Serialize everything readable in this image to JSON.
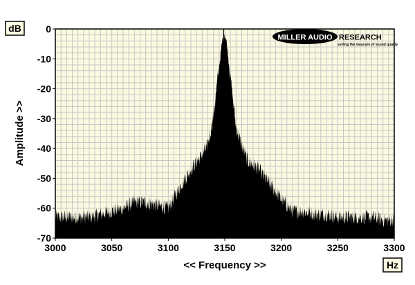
{
  "chart_data": {
    "type": "area",
    "title": "",
    "xlabel": "<< Frequency >>",
    "ylabel": "Amplitude >>",
    "x_unit": "Hz",
    "y_unit": "dB",
    "xlim": [
      3000,
      3300
    ],
    "ylim": [
      -70,
      0
    ],
    "x_ticks": [
      3000,
      3050,
      3100,
      3150,
      3200,
      3250,
      3300
    ],
    "x_tick_labels": [
      "3000",
      "3050",
      "3100",
      "3150",
      "3200",
      "3250",
      "3300"
    ],
    "y_ticks": [
      0,
      -10,
      -20,
      -30,
      -40,
      -50,
      -60,
      -70
    ],
    "y_tick_labels": [
      "0",
      "-10",
      "-20",
      "-30",
      "-40",
      "-50",
      "-60",
      "-70"
    ],
    "grid": true,
    "legend": "none",
    "colors": {
      "plot_bg": "#fbf9e0",
      "grid": "#c6c6c6",
      "fill": "#000000"
    },
    "series": [
      {
        "x": [
          3000,
          3010,
          3020,
          3030,
          3040,
          3050,
          3060,
          3070,
          3080,
          3090,
          3100,
          3110,
          3120,
          3130,
          3135,
          3140,
          3143,
          3146,
          3148,
          3150,
          3152,
          3155,
          3160,
          3165,
          3170,
          3180,
          3190,
          3200,
          3210,
          3220,
          3230,
          3240,
          3250,
          3260,
          3270,
          3280,
          3290,
          3300
        ],
        "values": [
          -64,
          -64,
          -64,
          -64,
          -63,
          -62,
          -61,
          -59,
          -59,
          -60,
          -61,
          -54,
          -48,
          -43,
          -40,
          -30,
          -20,
          -10,
          -4,
          -2,
          -6,
          -17,
          -34,
          -40,
          -45,
          -48,
          -53,
          -58,
          -62,
          -62,
          -63,
          -63,
          -64,
          -64,
          -64,
          -64,
          -65,
          -65
        ]
      }
    ]
  },
  "logo": {
    "brand_left": "MILLER AUDIO",
    "brand_right": "RESEARCH",
    "tagline": "setting the measure of sound quality"
  }
}
